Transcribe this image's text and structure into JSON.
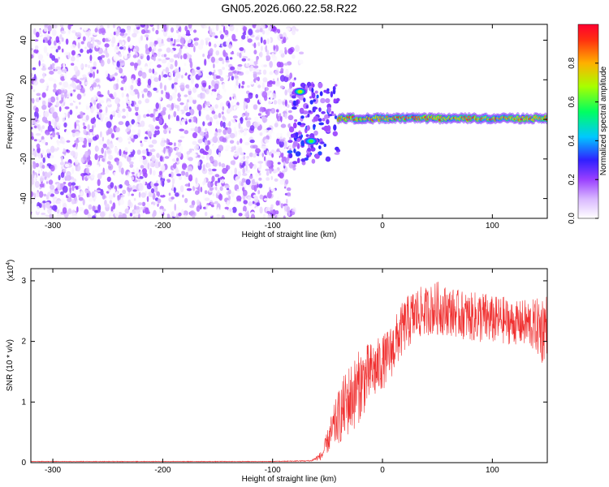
{
  "chart_data": [
    {
      "type": "heatmap",
      "title": "GN05.2026.060.22.58.R22",
      "xlabel": "Height of straight line (km)",
      "ylabel": "Frequency (Hz)",
      "xlim": [
        -320,
        150
      ],
      "ylim": [
        -50,
        48
      ],
      "xticks": [
        -300,
        -200,
        -100,
        0,
        100
      ],
      "yticks": [
        -40,
        -20,
        0,
        20,
        40
      ],
      "colorbar": {
        "label": "Normalized spectral amplitude",
        "range": [
          0,
          1
        ],
        "ticks": [
          0.0,
          0.2,
          0.4,
          0.6,
          0.8
        ],
        "tick_labels": [
          "0.0",
          "0.2",
          "0.4",
          "0.6",
          "0.8"
        ],
        "colors": [
          "#ffffff",
          "#b57bff",
          "#7a00ff",
          "#2030ff",
          "#00e0ff",
          "#00ff40",
          "#c8ff00",
          "#ffb000",
          "#ff2000"
        ]
      },
      "regions": [
        {
          "name": "noise",
          "x_range": [
            -320,
            -80
          ],
          "freq_range": [
            -50,
            48
          ],
          "amplitude": [
            0.0,
            0.2
          ]
        },
        {
          "name": "transition-upper-blob",
          "x": -75,
          "freq": 14,
          "amplitude": 0.7
        },
        {
          "name": "transition-lower-blob",
          "x": -65,
          "freq": -11,
          "amplitude": 0.6
        },
        {
          "name": "carrier",
          "x_range": [
            -40,
            150
          ],
          "freq": 0.5,
          "amplitude": 0.95
        }
      ]
    },
    {
      "type": "line",
      "xlabel": "Height of straight line (km)",
      "ylabel": "SNR (10 * v/v)",
      "exponent_label": "(x10",
      "exponent_power": "4",
      "exponent_close": ")",
      "xlim": [
        -320,
        150
      ],
      "ylim": [
        0,
        3.2
      ],
      "xticks": [
        -300,
        -200,
        -100,
        0,
        100
      ],
      "yticks": [
        0,
        1,
        2,
        3
      ],
      "color": "#f03030",
      "series": [
        {
          "name": "SNR",
          "x": [
            -320,
            -200,
            -100,
            -65,
            -55,
            -50,
            -45,
            -40,
            -35,
            -30,
            -25,
            -20,
            -15,
            -10,
            -5,
            0,
            5,
            10,
            15,
            20,
            25,
            30,
            40,
            50,
            60,
            70,
            80,
            90,
            100,
            110,
            120,
            130,
            140,
            145,
            150
          ],
          "values": [
            0.02,
            0.02,
            0.02,
            0.03,
            0.12,
            0.35,
            0.55,
            0.75,
            0.9,
            1.05,
            1.15,
            1.3,
            1.4,
            1.5,
            1.55,
            1.65,
            1.75,
            1.9,
            2.1,
            2.25,
            2.35,
            2.45,
            2.5,
            2.55,
            2.5,
            2.45,
            2.4,
            2.4,
            2.35,
            2.35,
            2.3,
            2.3,
            2.25,
            2.2,
            2.3
          ],
          "spread": [
            0.005,
            0.005,
            0.005,
            0.01,
            0.08,
            0.2,
            0.35,
            0.45,
            0.55,
            0.6,
            0.6,
            0.6,
            0.55,
            0.5,
            0.5,
            0.45,
            0.45,
            0.45,
            0.45,
            0.45,
            0.45,
            0.45,
            0.4,
            0.45,
            0.4,
            0.4,
            0.4,
            0.45,
            0.4,
            0.4,
            0.35,
            0.4,
            0.45,
            0.6,
            0.5
          ]
        }
      ]
    }
  ]
}
